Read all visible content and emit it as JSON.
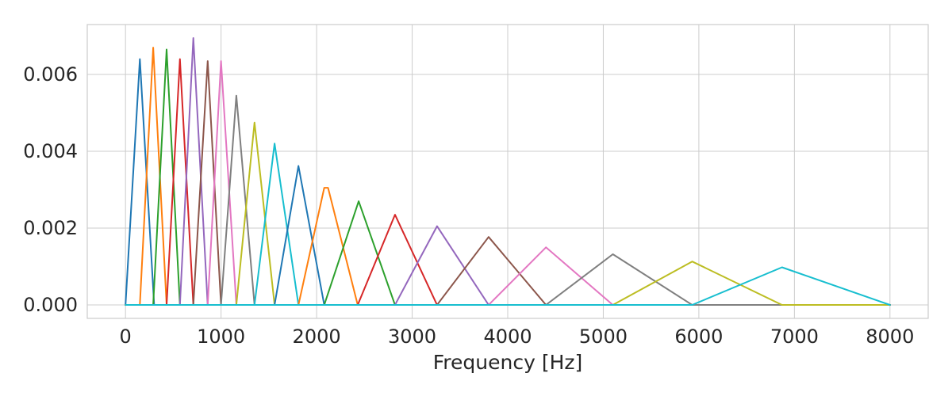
{
  "chart_data": {
    "type": "line",
    "title": "",
    "xlabel": "Frequency [Hz]",
    "ylabel": "",
    "xlim": [
      -400,
      8400
    ],
    "ylim": [
      -0.00035,
      0.0073
    ],
    "xticks": [
      0,
      1000,
      2000,
      3000,
      4000,
      5000,
      6000,
      7000,
      8000
    ],
    "xtick_labels": [
      "0",
      "1000",
      "2000",
      "3000",
      "4000",
      "5000",
      "6000",
      "7000",
      "8000"
    ],
    "yticks": [
      0.0,
      0.002,
      0.004,
      0.006
    ],
    "ytick_labels": [
      "0.000",
      "0.002",
      "0.004",
      "0.006"
    ],
    "grid": true,
    "legend": "none",
    "series": [
      {
        "color": "#1f77b4",
        "x": [
          0,
          150,
          300,
          8000
        ],
        "y": [
          0,
          0.0064,
          0,
          0
        ]
      },
      {
        "color": "#ff7f0e",
        "x": [
          0,
          150,
          290,
          430,
          8000
        ],
        "y": [
          0,
          0,
          0.0067,
          0,
          0
        ]
      },
      {
        "color": "#2ca02c",
        "x": [
          0,
          290,
          430,
          570,
          8000
        ],
        "y": [
          0,
          0,
          0.00665,
          0,
          0
        ]
      },
      {
        "color": "#d62728",
        "x": [
          0,
          430,
          570,
          710,
          8000
        ],
        "y": [
          0,
          0,
          0.0064,
          0,
          0
        ]
      },
      {
        "color": "#9467bd",
        "x": [
          0,
          570,
          710,
          860,
          8000
        ],
        "y": [
          0,
          0,
          0.00695,
          0,
          0
        ]
      },
      {
        "color": "#8c564b",
        "x": [
          0,
          710,
          860,
          1000,
          8000
        ],
        "y": [
          0,
          0,
          0.00635,
          0,
          0
        ]
      },
      {
        "color": "#e377c2",
        "x": [
          0,
          860,
          1000,
          1160,
          8000
        ],
        "y": [
          0,
          0,
          0.00635,
          0,
          0
        ]
      },
      {
        "color": "#7f7f7f",
        "x": [
          0,
          1000,
          1160,
          1350,
          8000
        ],
        "y": [
          0,
          0,
          0.00545,
          0,
          0
        ]
      },
      {
        "color": "#bcbd22",
        "x": [
          0,
          1160,
          1350,
          1560,
          8000
        ],
        "y": [
          0,
          0,
          0.00475,
          0,
          0
        ]
      },
      {
        "color": "#17becf",
        "x": [
          0,
          1350,
          1560,
          1810,
          8000
        ],
        "y": [
          0,
          0,
          0.0042,
          0,
          0
        ]
      },
      {
        "color": "#1f77b4",
        "x": [
          0,
          1560,
          1810,
          2080,
          8000
        ],
        "y": [
          0,
          0,
          0.00362,
          0,
          0
        ]
      },
      {
        "color": "#ff7f0e",
        "x": [
          0,
          1810,
          2080,
          2120,
          2430,
          8000
        ],
        "y": [
          0,
          0,
          0.00305,
          0.00305,
          0,
          0
        ]
      },
      {
        "color": "#2ca02c",
        "x": [
          0,
          2080,
          2440,
          2820,
          8000
        ],
        "y": [
          0,
          0,
          0.0027,
          0,
          0
        ]
      },
      {
        "color": "#d62728",
        "x": [
          0,
          2430,
          2820,
          3260,
          8000
        ],
        "y": [
          0,
          0,
          0.00235,
          0,
          0
        ]
      },
      {
        "color": "#9467bd",
        "x": [
          0,
          2820,
          3260,
          3800,
          8000
        ],
        "y": [
          0,
          0,
          0.00205,
          0,
          0
        ]
      },
      {
        "color": "#8c564b",
        "x": [
          0,
          3260,
          3800,
          4400,
          8000
        ],
        "y": [
          0,
          0,
          0.00177,
          0,
          0
        ]
      },
      {
        "color": "#e377c2",
        "x": [
          0,
          3800,
          4400,
          5100,
          8000
        ],
        "y": [
          0,
          0,
          0.0015,
          0,
          0
        ]
      },
      {
        "color": "#7f7f7f",
        "x": [
          0,
          4400,
          5100,
          5930,
          8000
        ],
        "y": [
          0,
          0,
          0.00132,
          0,
          0
        ]
      },
      {
        "color": "#bcbd22",
        "x": [
          0,
          5100,
          5930,
          6870,
          8000
        ],
        "y": [
          0,
          0,
          0.00113,
          0,
          0
        ]
      },
      {
        "color": "#17becf",
        "x": [
          0,
          5930,
          6870,
          8000
        ],
        "y": [
          0,
          0,
          0.00098,
          0
        ]
      }
    ]
  }
}
